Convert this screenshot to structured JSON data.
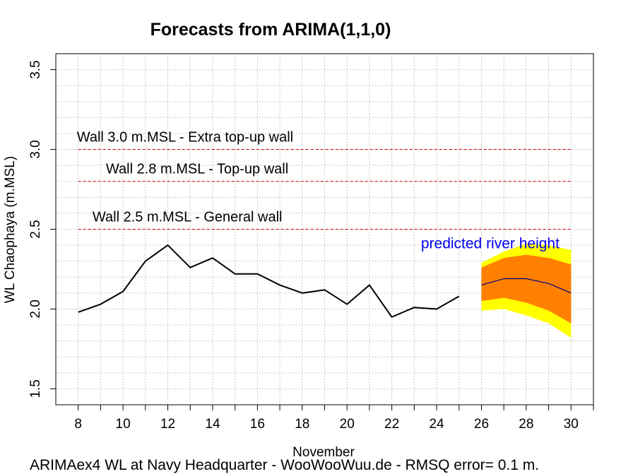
{
  "chart_data": {
    "type": "line",
    "title": "Forecasts from ARIMA(1,1,0)",
    "xlabel": "November",
    "ylabel": "WL Chaophaya (m.MSL)",
    "footer": "ARIMAex4 WL at Navy Headquarter - WooWooWuu.de - RMSQ error= 0.1  m.",
    "xlim": [
      7,
      31
    ],
    "ylim": [
      1.4,
      3.6
    ],
    "x_ticks": [
      8,
      10,
      12,
      14,
      16,
      18,
      20,
      22,
      24,
      26,
      28,
      30
    ],
    "x_ticks_minor": [
      9,
      11,
      13,
      15,
      17,
      19,
      21,
      23,
      25,
      27,
      29,
      31
    ],
    "y_ticks": [
      1.5,
      2.0,
      2.5,
      3.0,
      3.5
    ],
    "y_tick_labels": [
      "1.5",
      "2.0",
      "2.5",
      "3.0",
      "3.5"
    ],
    "grid": true,
    "series": [
      {
        "color": "#000000",
        "x": [
          8,
          9,
          10,
          11,
          12,
          13,
          14,
          15,
          16,
          17,
          18,
          19,
          20,
          21,
          22,
          23,
          24,
          25
        ],
        "values": [
          1.98,
          2.03,
          2.11,
          2.3,
          2.4,
          2.26,
          2.32,
          2.22,
          2.22,
          2.15,
          2.1,
          2.12,
          2.03,
          2.15,
          1.95,
          2.01,
          2.0,
          2.08
        ]
      },
      {
        "color": "#000080",
        "x": [
          26,
          27,
          28,
          29,
          30
        ],
        "values": [
          2.15,
          2.19,
          2.19,
          2.16,
          2.1
        ]
      }
    ],
    "forecast_bands": [
      {
        "color": "#ffff00",
        "x": [
          26,
          27,
          28,
          29,
          30
        ],
        "upper": [
          2.29,
          2.36,
          2.41,
          2.4,
          2.37
        ],
        "lower": [
          1.99,
          2.0,
          1.96,
          1.91,
          1.82
        ]
      },
      {
        "color": "#ff8000",
        "x": [
          26,
          27,
          28,
          29,
          30
        ],
        "upper": [
          2.26,
          2.32,
          2.34,
          2.32,
          2.28
        ],
        "lower": [
          2.05,
          2.07,
          2.04,
          1.99,
          1.91
        ]
      }
    ],
    "reference_lines": [
      {
        "y": 3.0,
        "x_from": 8,
        "x_to": 30,
        "color": "#cc0000",
        "label": "Wall 3.0 m.MSL - Extra top-up wall",
        "label_x": 8
      },
      {
        "y": 2.8,
        "x_from": 8,
        "x_to": 30,
        "color": "#cc0000",
        "label": "Wall 2.8 m.MSL - Top-up wall",
        "label_x": 9.3
      },
      {
        "y": 2.5,
        "x_from": 8,
        "x_to": 30,
        "color": "#cc0000",
        "label": "Wall 2.5 m.MSL - General wall",
        "label_x": 8.7
      }
    ],
    "annotations": [
      {
        "text": "predicted river height",
        "x": 23.3,
        "y": 2.38,
        "color": "#0000ee"
      }
    ]
  }
}
